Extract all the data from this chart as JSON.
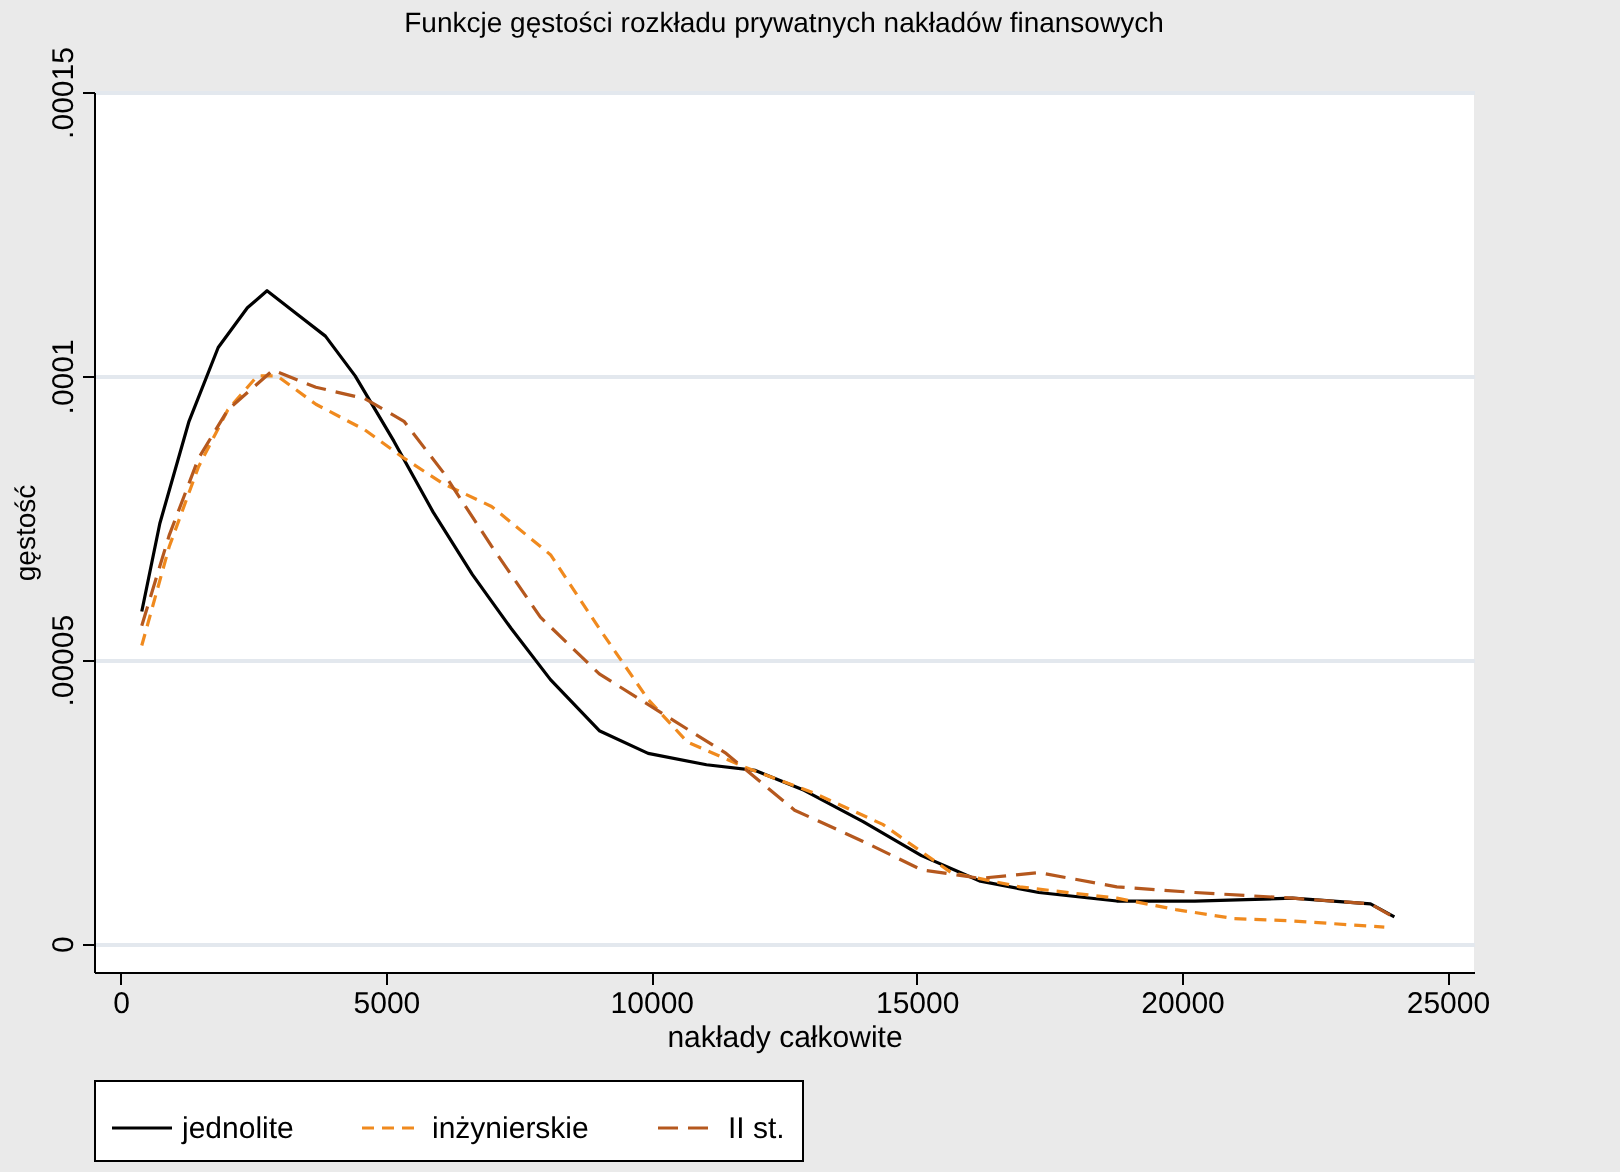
{
  "chart_data": {
    "type": "line",
    "title": "Funkcje gęstości rozkładu prywatnych nakładów finansowych",
    "xlabel": "nakłady całkowite",
    "ylabel": "gęstość",
    "xlim": [
      -500,
      25500
    ],
    "xticks": [
      0,
      5000,
      10000,
      15000,
      20000,
      25000
    ],
    "ylim": [
      -5e-06,
      0.00015
    ],
    "yticks": [
      {
        "value": 0,
        "label": "0"
      },
      {
        "value": 5e-05,
        "label": ".00005"
      },
      {
        "value": 0.0001,
        "label": ".0001"
      },
      {
        "value": 0.00015,
        "label": ".00015"
      }
    ],
    "grid": "y",
    "legend": "bottom",
    "series": [
      {
        "name": "jednolite",
        "color": "#000000",
        "line_style": "solid",
        "x": [
          400,
          740,
          1290,
          1840,
          2390,
          2760,
          3310,
          3860,
          4420,
          5150,
          5890,
          6630,
          7360,
          8100,
          9020,
          9940,
          11040,
          11960,
          12880,
          13990,
          15090,
          16200,
          17300,
          18770,
          20240,
          22080,
          23550,
          24000
        ],
        "values": [
          5.85e-05,
          7.4e-05,
          9.2e-05,
          0.000105,
          0.000112,
          0.000115,
          0.000111,
          0.000107,
          0.0001,
          8.85e-05,
          7.6e-05,
          6.5e-05,
          5.55e-05,
          4.65e-05,
          3.75e-05,
          3.35e-05,
          3.15e-05,
          3.05e-05,
          2.7e-05,
          2.15e-05,
          1.55e-05,
          1.1e-05,
          9e-06,
          7.5e-06,
          7.5e-06,
          8e-06,
          7e-06,
          4.7e-06
        ]
      },
      {
        "name": "inżynierskie",
        "color": "#f08a1e",
        "line_style": "dashed",
        "x": [
          400,
          920,
          1470,
          2020,
          2580,
          2950,
          3680,
          4600,
          5340,
          6080,
          6990,
          8100,
          9020,
          9940,
          10680,
          11780,
          13070,
          14360,
          15650,
          16940,
          18770,
          19880,
          20980,
          22080,
          23810
        ],
        "values": [
          5.25e-05,
          7e-05,
          8.4e-05,
          9.4e-05,
          0.0001,
          0.0001,
          9.5e-05,
          9.05e-05,
          8.55e-05,
          8.1e-05,
          7.7e-05,
          6.85e-05,
          5.55e-05,
          4.3e-05,
          3.55e-05,
          3.1e-05,
          2.65e-05,
          2.1e-05,
          1.25e-05,
          1e-05,
          8e-06,
          6e-06,
          4.4e-06,
          4e-06,
          2.9e-06
        ]
      },
      {
        "name": "II st.",
        "color": "#b5581e",
        "line_style": "longdashed",
        "x": [
          400,
          920,
          1470,
          2020,
          2870,
          3680,
          4600,
          5340,
          6080,
          6990,
          7910,
          9020,
          10130,
          11410,
          12700,
          13990,
          15090,
          16200,
          17300,
          18770,
          20240,
          22080,
          23550,
          23920
        ],
        "values": [
          5.6e-05,
          7.2e-05,
          8.55e-05,
          9.4e-05,
          0.000101,
          9.8e-05,
          9.6e-05,
          9.2e-05,
          8.3e-05,
          7e-05,
          5.75e-05,
          4.75e-05,
          4.1e-05,
          3.35e-05,
          2.35e-05,
          1.8e-05,
          1.3e-05,
          1.15e-05,
          1.25e-05,
          1e-05,
          9e-06,
          8e-06,
          7e-06,
          5e-06
        ]
      }
    ]
  }
}
